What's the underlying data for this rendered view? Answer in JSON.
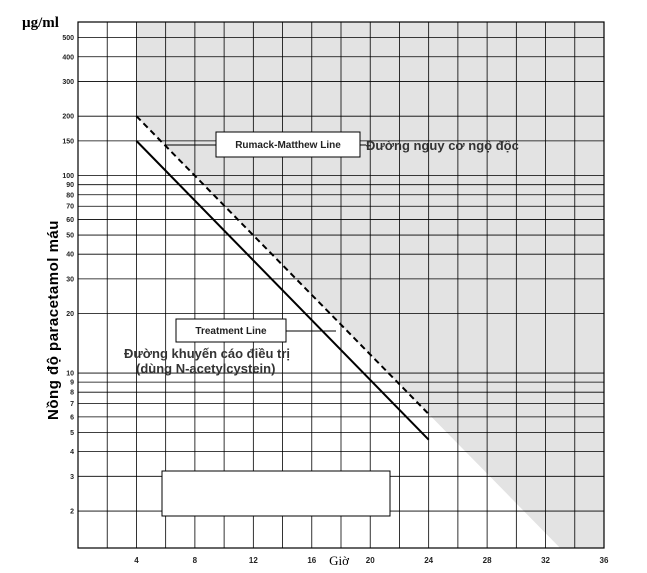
{
  "chart_data": {
    "type": "line",
    "title": "",
    "unit_label": "µg/ml",
    "xlabel": "Giờ",
    "ylabel": "Nồng độ paracetamol máu",
    "x_ticks": [
      4,
      8,
      12,
      16,
      20,
      24,
      28,
      32,
      36
    ],
    "x_range": [
      0,
      36
    ],
    "y_scale": "log",
    "y_range": [
      1.3,
      600
    ],
    "y_ticks": [
      2,
      3,
      4,
      5,
      6,
      7,
      8,
      9,
      10,
      20,
      30,
      40,
      50,
      60,
      70,
      80,
      90,
      100,
      150,
      200,
      300,
      400,
      500
    ],
    "grid": true,
    "toxic_region": {
      "label": "Đường nguy cơ ngộ độc",
      "color": "#e3e3e3"
    },
    "series": [
      {
        "name": "Rumack-Matthew Line",
        "style": "dashed",
        "color": "#000000",
        "points": [
          {
            "x": 4,
            "y": 200
          },
          {
            "x": 24,
            "y": 6.2
          }
        ]
      },
      {
        "name": "Treatment Line",
        "style": "solid",
        "color": "#000000",
        "points": [
          {
            "x": 4,
            "y": 150
          },
          {
            "x": 24,
            "y": 4.6
          }
        ]
      }
    ],
    "annotations": {
      "treatment_line1": "Đường khuyến cáo điều trị",
      "treatment_line2": "(dùng N-acetylcystein)"
    }
  }
}
